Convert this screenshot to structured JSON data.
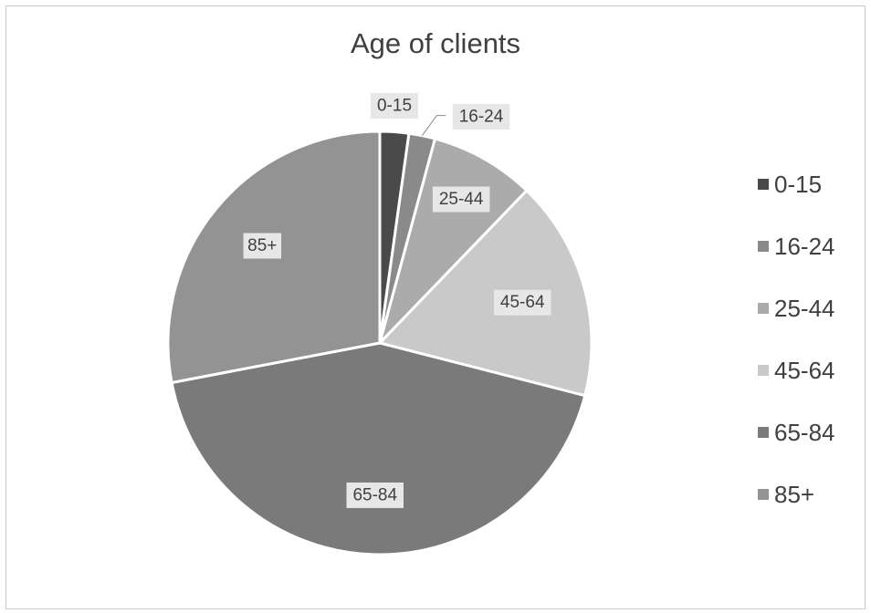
{
  "chart_data": {
    "type": "pie",
    "title": "Age of clients",
    "categories": [
      "0-15",
      "16-24",
      "25-44",
      "45-64",
      "65-84",
      "85+"
    ],
    "values": [
      2.2,
      2.0,
      8.0,
      16.8,
      43.0,
      28.0
    ],
    "colors": [
      "#4a4a4a",
      "#8a8a8a",
      "#ababab",
      "#c9c9c9",
      "#7a7a7a",
      "#939393"
    ],
    "legend_position": "right",
    "data_labels": true
  }
}
